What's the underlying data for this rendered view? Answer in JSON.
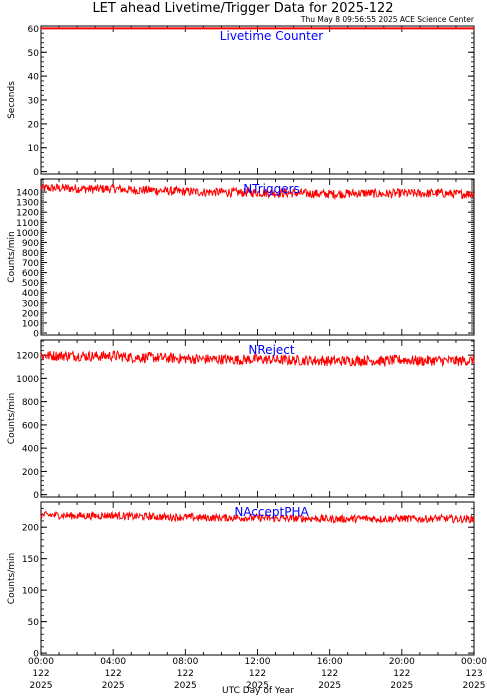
{
  "header": {
    "title": "LET ahead Livetime/Trigger Data for 2025-122",
    "timestamp": "Thu May  8 09:56:55 2025 ACE Science Center"
  },
  "colors": {
    "series": "#ff0000",
    "panel_label": "#0000ff",
    "axis": "#000000",
    "background": "#ffffff"
  },
  "chart_data": [
    {
      "type": "line",
      "panel_label": "Livetime Counter",
      "ylabel": "Seconds",
      "ylim": [
        -1,
        61
      ],
      "yticks": [
        0,
        10,
        20,
        30,
        40,
        50,
        60
      ],
      "x_range_hours": [
        0,
        24
      ],
      "series": [
        {
          "x_hours": [
            0,
            24
          ],
          "values": [
            60,
            60
          ]
        }
      ]
    },
    {
      "type": "line",
      "panel_label": "NTriggers",
      "ylabel": "Counts/min",
      "ylim": [
        -20,
        1530
      ],
      "yticks": [
        0,
        100,
        200,
        300,
        400,
        500,
        600,
        700,
        800,
        900,
        1000,
        1100,
        1200,
        1300,
        1400
      ],
      "x_range_hours": [
        0,
        24
      ],
      "series": [
        {
          "x_hours": [
            0,
            1,
            2,
            3,
            4,
            5,
            6,
            7,
            8,
            9,
            10,
            11,
            12,
            13,
            14,
            15,
            16,
            17,
            18,
            19,
            20,
            21,
            22,
            23,
            24
          ],
          "values": [
            1440,
            1440,
            1435,
            1430,
            1435,
            1420,
            1420,
            1410,
            1405,
            1400,
            1400,
            1395,
            1395,
            1390,
            1390,
            1385,
            1380,
            1385,
            1390,
            1380,
            1390,
            1385,
            1390,
            1380,
            1385
          ],
          "noise_band": 45
        }
      ]
    },
    {
      "type": "line",
      "panel_label": "NReject",
      "ylabel": "Counts/min",
      "ylim": [
        -20,
        1330
      ],
      "yticks": [
        0,
        200,
        400,
        600,
        800,
        1000,
        1200
      ],
      "x_range_hours": [
        0,
        24
      ],
      "series": [
        {
          "x_hours": [
            0,
            1,
            2,
            3,
            4,
            5,
            6,
            7,
            8,
            9,
            10,
            11,
            12,
            13,
            14,
            15,
            16,
            17,
            18,
            19,
            20,
            21,
            22,
            23,
            24
          ],
          "values": [
            1195,
            1195,
            1195,
            1190,
            1195,
            1180,
            1180,
            1175,
            1170,
            1165,
            1165,
            1160,
            1165,
            1160,
            1155,
            1155,
            1150,
            1150,
            1155,
            1150,
            1160,
            1150,
            1155,
            1150,
            1155
          ],
          "noise_band": 45
        }
      ]
    },
    {
      "type": "line",
      "panel_label": "NAcceptPHA",
      "ylabel": "Counts/min",
      "ylim": [
        -3,
        240
      ],
      "yticks": [
        0,
        50,
        100,
        150,
        200
      ],
      "x_range_hours": [
        0,
        24
      ],
      "series": [
        {
          "x_hours": [
            0,
            1,
            2,
            3,
            4,
            5,
            6,
            7,
            8,
            9,
            10,
            11,
            12,
            13,
            14,
            15,
            16,
            17,
            18,
            19,
            20,
            21,
            22,
            23,
            24
          ],
          "values": [
            219,
            219,
            218,
            218,
            219,
            217,
            217,
            216,
            216,
            215,
            215,
            215,
            215,
            214,
            214,
            214,
            213,
            213,
            214,
            213,
            214,
            213,
            214,
            213,
            213
          ],
          "noise_band": 6
        }
      ]
    }
  ],
  "x_axis": {
    "title": "UTC Day of Year",
    "ticks": [
      {
        "hour": 0,
        "time": "00:00",
        "doy": "122",
        "year": "2025"
      },
      {
        "hour": 4,
        "time": "04:00",
        "doy": "122",
        "year": "2025"
      },
      {
        "hour": 8,
        "time": "08:00",
        "doy": "122",
        "year": "2025"
      },
      {
        "hour": 12,
        "time": "12:00",
        "doy": "122",
        "year": "2025"
      },
      {
        "hour": 16,
        "time": "16:00",
        "doy": "122",
        "year": "2025"
      },
      {
        "hour": 20,
        "time": "20:00",
        "doy": "122",
        "year": "2025"
      },
      {
        "hour": 24,
        "time": "00:00",
        "doy": "123",
        "year": "2025"
      }
    ]
  }
}
